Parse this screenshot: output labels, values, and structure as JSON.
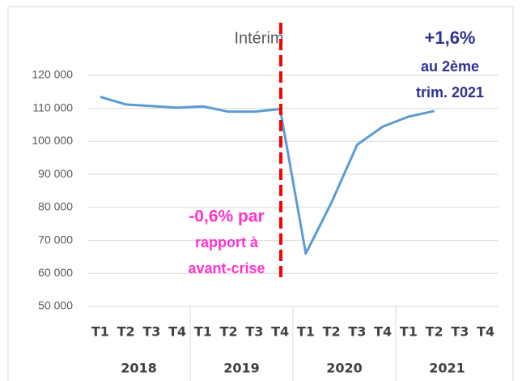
{
  "chart_data": {
    "type": "line",
    "title": "Intérim",
    "categories": [
      "T1",
      "T2",
      "T3",
      "T4",
      "T1",
      "T2",
      "T3",
      "T4",
      "T1",
      "T2",
      "T3",
      "T4",
      "T1",
      "T2",
      "T3",
      "T4"
    ],
    "category_groups": [
      "2018",
      "2019",
      "2020",
      "2021"
    ],
    "values": [
      113500,
      111200,
      110700,
      110200,
      110600,
      109000,
      109000,
      109800,
      66000,
      81500,
      99000,
      104500,
      107500,
      109200,
      null,
      null
    ],
    "color": "#5b9bd5",
    "ylim": [
      50000,
      120000
    ],
    "yticks": [
      {
        "value": 50000,
        "label": "50 000"
      },
      {
        "value": 60000,
        "label": "60 000"
      },
      {
        "value": 70000,
        "label": "70 000"
      },
      {
        "value": 80000,
        "label": "80 000"
      },
      {
        "value": 90000,
        "label": "90 000"
      },
      {
        "value": 100000,
        "label": "100 000"
      },
      {
        "value": 110000,
        "label": "110 000"
      },
      {
        "value": 120000,
        "label": "120 000"
      }
    ],
    "grid": true,
    "annotations": [
      {
        "lines": [
          "+1,6%",
          "au 2ème",
          "trim. 2021"
        ],
        "color": "#2e3192"
      },
      {
        "lines": [
          "-0,6% par",
          "rapport à",
          "avant-crise"
        ],
        "color": "#ff33cc"
      }
    ]
  }
}
